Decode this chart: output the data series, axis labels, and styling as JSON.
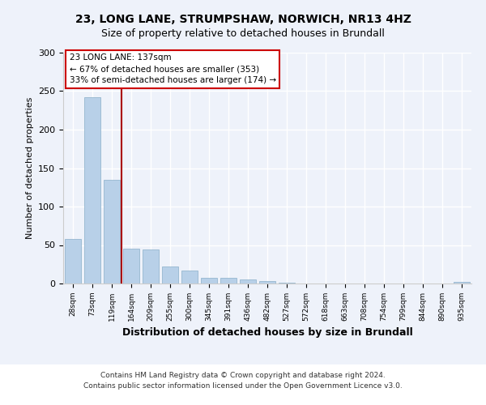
{
  "title1": "23, LONG LANE, STRUMPSHAW, NORWICH, NR13 4HZ",
  "title2": "Size of property relative to detached houses in Brundall",
  "xlabel": "Distribution of detached houses by size in Brundall",
  "ylabel": "Number of detached properties",
  "categories": [
    "28sqm",
    "73sqm",
    "119sqm",
    "164sqm",
    "209sqm",
    "255sqm",
    "300sqm",
    "345sqm",
    "391sqm",
    "436sqm",
    "482sqm",
    "527sqm",
    "572sqm",
    "618sqm",
    "663sqm",
    "708sqm",
    "754sqm",
    "799sqm",
    "844sqm",
    "890sqm",
    "935sqm"
  ],
  "values": [
    58,
    242,
    135,
    45,
    44,
    22,
    17,
    7,
    7,
    5,
    3,
    1,
    0,
    0,
    0,
    0,
    0,
    0,
    0,
    0,
    2
  ],
  "bar_color": "#b8d0e8",
  "bar_edge_color": "#8aaec8",
  "annotation_box_color": "#ffffff",
  "annotation_box_edge_color": "#cc0000",
  "vline_color": "#aa0000",
  "vline_x": 2.5,
  "ylim": [
    0,
    300
  ],
  "yticks": [
    0,
    50,
    100,
    150,
    200,
    250,
    300
  ],
  "background_color": "#eef2fa",
  "plot_bg_color": "#eef2fa",
  "grid_color": "#ffffff",
  "footer_line1": "Contains HM Land Registry data © Crown copyright and database right 2024.",
  "footer_line2": "Contains public sector information licensed under the Open Government Licence v3.0.",
  "marker_label": "23 LONG LANE: 137sqm",
  "annotation_line1": "← 67% of detached houses are smaller (353)",
  "annotation_line2": "33% of semi-detached houses are larger (174) →"
}
